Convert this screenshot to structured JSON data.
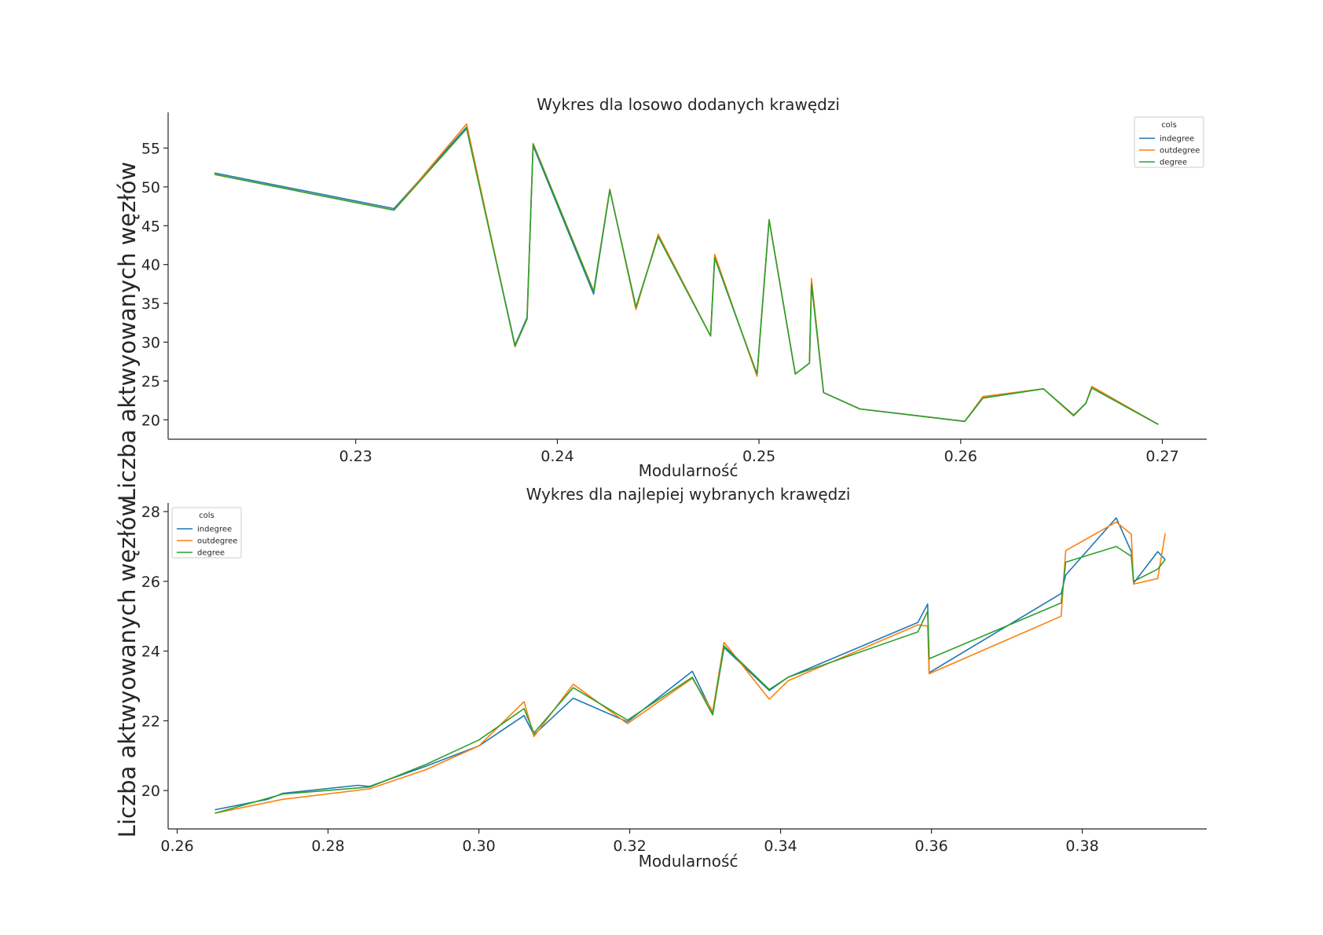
{
  "chart_data": [
    {
      "type": "line",
      "title": "Wykres dla losowo dodanych krawędzi",
      "xlabel": "Modularność",
      "ylabel": "Liczba aktwyowanych węzłów",
      "xlim": [
        0.2207,
        0.2722
      ],
      "ylim": [
        17.5,
        59.6
      ],
      "xticks": [
        0.23,
        0.24,
        0.25,
        0.26,
        0.27
      ],
      "xtick_labels": [
        "0.23",
        "0.24",
        "0.25",
        "0.26",
        "0.27"
      ],
      "yticks": [
        20,
        25,
        30,
        35,
        40,
        45,
        50,
        55
      ],
      "ytick_labels": [
        "20",
        "25",
        "30",
        "35",
        "40",
        "45",
        "50",
        "55"
      ],
      "grid": false,
      "legend": {
        "title": "cols",
        "placement": "top-right"
      },
      "series": [
        {
          "name": "indegree",
          "color": "#1f77b4",
          "x": [
            0.223,
            0.2319,
            0.2355,
            0.2379,
            0.2385,
            0.2388,
            0.2418,
            0.2426,
            0.2439,
            0.245,
            0.2476,
            0.2478,
            0.2499,
            0.2505,
            0.2518,
            0.2525,
            0.2526,
            0.2532,
            0.255,
            0.2602,
            0.2611,
            0.2641,
            0.2656,
            0.2662,
            0.2665,
            0.2698
          ],
          "y": [
            51.8,
            47.2,
            57.7,
            29.6,
            33.2,
            55.3,
            36.2,
            49.6,
            34.5,
            43.6,
            30.8,
            40.9,
            25.8,
            45.8,
            25.9,
            27.3,
            37.6,
            23.5,
            21.4,
            19.8,
            22.8,
            24.0,
            20.6,
            22.1,
            24.1,
            19.4
          ]
        },
        {
          "name": "outdegree",
          "color": "#ff7f0e",
          "x": [
            0.223,
            0.2319,
            0.2355,
            0.2379,
            0.2385,
            0.2388,
            0.2418,
            0.2426,
            0.2439,
            0.245,
            0.2476,
            0.2478,
            0.2499,
            0.2505,
            0.2518,
            0.2525,
            0.2526,
            0.2532,
            0.255,
            0.2602,
            0.2611,
            0.2641,
            0.2656,
            0.2662,
            0.2665,
            0.2698
          ],
          "y": [
            51.6,
            47.0,
            58.1,
            29.4,
            33.0,
            55.6,
            36.6,
            49.7,
            34.2,
            43.9,
            30.8,
            41.3,
            25.6,
            45.8,
            25.9,
            27.3,
            38.2,
            23.5,
            21.4,
            19.8,
            23.0,
            24.0,
            20.5,
            22.1,
            24.3,
            19.4
          ]
        },
        {
          "name": "degree",
          "color": "#2ca02c",
          "x": [
            0.223,
            0.2319,
            0.2355,
            0.2379,
            0.2385,
            0.2388,
            0.2418,
            0.2426,
            0.2439,
            0.245,
            0.2476,
            0.2478,
            0.2499,
            0.2505,
            0.2518,
            0.2525,
            0.2526,
            0.2532,
            0.255,
            0.2602,
            0.2611,
            0.2641,
            0.2656,
            0.2662,
            0.2665,
            0.2698
          ],
          "y": [
            51.6,
            47.0,
            57.5,
            29.5,
            33.0,
            55.5,
            36.5,
            49.6,
            34.5,
            43.6,
            30.8,
            40.9,
            25.9,
            45.7,
            25.9,
            27.3,
            37.5,
            23.5,
            21.4,
            19.8,
            22.8,
            24.0,
            20.6,
            22.1,
            24.1,
            19.4
          ]
        }
      ]
    },
    {
      "type": "line",
      "title": "Wykres dla najlepiej wybranych krawędzi",
      "xlabel": "Modularność",
      "ylabel": "Liczba aktwyowanych węzłów",
      "xlim": [
        0.2588,
        0.3965
      ],
      "ylim": [
        18.9,
        28.25
      ],
      "xticks": [
        0.26,
        0.28,
        0.3,
        0.32,
        0.34,
        0.36,
        0.38
      ],
      "xtick_labels": [
        "0.26",
        "0.28",
        "0.30",
        "0.32",
        "0.34",
        "0.36",
        "0.38"
      ],
      "yticks": [
        20,
        22,
        24,
        26,
        28
      ],
      "ytick_labels": [
        "20",
        "22",
        "24",
        "26",
        "28"
      ],
      "grid": false,
      "legend": {
        "title": "cols",
        "placement": "top-left"
      },
      "series": [
        {
          "name": "indegree",
          "color": "#1f77b4",
          "x": [
            0.265,
            0.272,
            0.274,
            0.284,
            0.2855,
            0.293,
            0.3,
            0.306,
            0.3073,
            0.3125,
            0.3197,
            0.3283,
            0.331,
            0.3325,
            0.3385,
            0.341,
            0.3582,
            0.3595,
            0.3597,
            0.3772,
            0.3778,
            0.3845,
            0.3865,
            0.3868,
            0.39,
            0.391
          ],
          "y": [
            19.45,
            19.75,
            19.92,
            20.15,
            20.12,
            20.7,
            21.28,
            22.15,
            21.6,
            22.65,
            21.97,
            23.42,
            22.22,
            24.1,
            22.87,
            23.25,
            24.82,
            25.35,
            23.38,
            25.65,
            26.18,
            27.82,
            26.85,
            25.95,
            26.85,
            26.62
          ]
        },
        {
          "name": "outdegree",
          "color": "#ff7f0e",
          "x": [
            0.265,
            0.274,
            0.2855,
            0.293,
            0.3,
            0.306,
            0.3073,
            0.3125,
            0.3197,
            0.3283,
            0.331,
            0.3325,
            0.3385,
            0.341,
            0.3582,
            0.3595,
            0.3597,
            0.3772,
            0.3778,
            0.3845,
            0.3865,
            0.3868,
            0.39,
            0.391
          ],
          "y": [
            19.35,
            19.75,
            20.05,
            20.6,
            21.28,
            22.55,
            21.55,
            23.05,
            21.92,
            23.22,
            22.27,
            24.25,
            22.62,
            23.15,
            24.75,
            24.72,
            23.35,
            25.0,
            26.88,
            27.7,
            27.35,
            25.92,
            26.08,
            27.38
          ]
        },
        {
          "name": "degree",
          "color": "#2ca02c",
          "x": [
            0.265,
            0.274,
            0.2855,
            0.293,
            0.3,
            0.306,
            0.3073,
            0.3125,
            0.3197,
            0.3283,
            0.331,
            0.3325,
            0.3385,
            0.341,
            0.3582,
            0.3595,
            0.3597,
            0.3772,
            0.3778,
            0.3845,
            0.3865,
            0.3868,
            0.39,
            0.391
          ],
          "y": [
            19.35,
            19.9,
            20.1,
            20.75,
            21.45,
            22.35,
            21.65,
            22.95,
            22.02,
            23.25,
            22.17,
            24.15,
            22.9,
            23.25,
            24.55,
            25.15,
            23.78,
            25.38,
            26.55,
            27.0,
            26.72,
            26.0,
            26.35,
            26.62
          ]
        }
      ]
    }
  ]
}
